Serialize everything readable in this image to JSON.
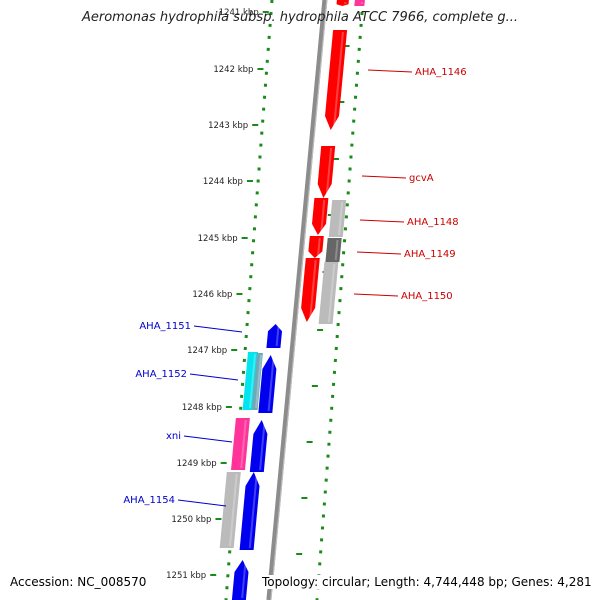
{
  "header": {
    "title": "Aeromonas hydrophila subsp. hydrophila ATCC 7966, complete g..."
  },
  "footer": {
    "accession": "Accession: NC_008570",
    "summary": "Topology: circular; Length: 4,744,448 bp; Genes: 4,281"
  },
  "ruler": {
    "labels": [
      "1241 kbp",
      "1242 kbp",
      "1243 kbp",
      "1244 kbp",
      "1245 kbp",
      "1246 kbp",
      "1247 kbp",
      "1248 kbp",
      "1249 kbp",
      "1250 kbp",
      "1251 kbp"
    ]
  },
  "gene_labels": {
    "forward": [
      "AHA_1146",
      "gcvA",
      "AHA_1148",
      "AHA_1149",
      "AHA_1150"
    ],
    "reverse": [
      "AHA_1151",
      "AHA_1152",
      "xni",
      "AHA_1154"
    ]
  },
  "colors": {
    "forward_cds": "#ff0000",
    "reverse_cds": "#0000ee",
    "forward_label": "#cc0000",
    "reverse_label": "#0000cc",
    "grey_feature": "#bbbbbb",
    "dark_grey_feature": "#666666",
    "pink_feature": "#ff3399",
    "cyan_feature": "#00e5ee",
    "backbone": "#8c8c8c",
    "dots": "#1a8a1a"
  }
}
